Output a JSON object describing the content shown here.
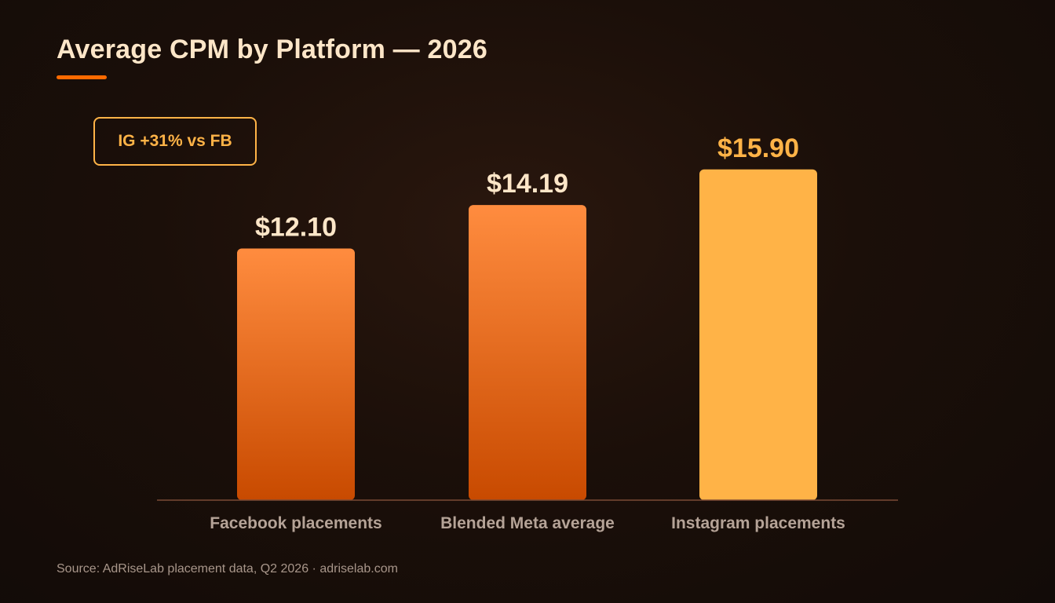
{
  "title": "Average CPM by Platform — 2026",
  "callout": "IG +31% vs FB",
  "source": "Source: AdRiseLab placement data, Q2 2026 · adriselab.com",
  "colors": {
    "accent": "#ff6a00",
    "title": "#fde6c8",
    "bar_gradient_top": "#ff8c3f",
    "bar_gradient_bottom": "#c84a00",
    "highlight_bar": "#ffb347",
    "axis_line": "#7a4a35",
    "category_label": "#b5a397",
    "value_label": "#fde6c8",
    "highlight_value_label": "#ffb347"
  },
  "chart_data": {
    "type": "bar",
    "title": "Average CPM by Platform — 2026",
    "categories": [
      "Facebook placements",
      "Blended Meta average",
      "Instagram placements"
    ],
    "values": [
      12.1,
      14.19,
      15.9
    ],
    "value_labels": [
      "$12.10",
      "$14.19",
      "$15.90"
    ],
    "highlight": [
      false,
      false,
      true
    ],
    "xlabel": "",
    "ylabel": "",
    "ylim": [
      0,
      17.1
    ],
    "grid": false,
    "legend": "none"
  }
}
